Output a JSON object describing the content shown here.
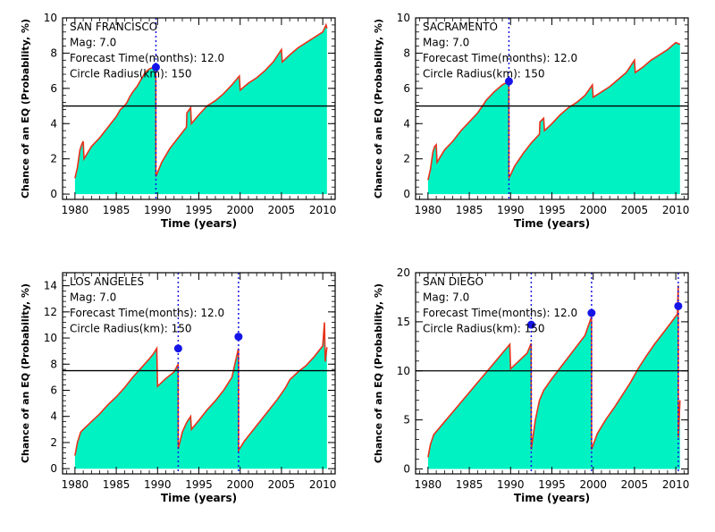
{
  "chart_data": [
    {
      "type": "area",
      "panel": "SAN FRANCISCO",
      "annotations": [
        "SAN FRANCISCO",
        "Mag: 7.0",
        "Forecast Time(months): 12.0",
        "Circle Radius(km): 150"
      ],
      "xlabel": "Time (years)",
      "ylabel": "Chance of an EQ (Probability, %)",
      "xlim": [
        1978.5,
        2011.5
      ],
      "ylim": [
        -0.3,
        10
      ],
      "xticks": [
        1980,
        1985,
        1990,
        1995,
        2000,
        2005,
        2010
      ],
      "yticks": [
        0,
        2,
        4,
        6,
        8,
        10
      ],
      "threshold": 5.0,
      "events": [
        {
          "year": 1989.8,
          "value": 7.2
        }
      ],
      "series": [
        {
          "x": [
            1980.0,
            1980.3,
            1980.6,
            1980.8,
            1981.0,
            1981.1,
            1981.6,
            1982.0,
            1983.0,
            1984.0,
            1985.0,
            1985.5,
            1986.0,
            1986.3,
            1986.6,
            1987.0,
            1987.5,
            1988.0,
            1988.5,
            1989.0,
            1989.5,
            1989.79,
            1989.8,
            1990.5,
            1991.5,
            1992.5,
            1993.5,
            1993.55,
            1994.0,
            1994.1,
            1995.0,
            1996.0,
            1997.0,
            1998.0,
            1999.0,
            1999.9,
            2000.0,
            2001.0,
            2002.0,
            2003.0,
            2004.0,
            2005.0,
            2005.1,
            2006.0,
            2007.0,
            2008.0,
            2009.0,
            2010.0,
            2010.4,
            2010.5
          ],
          "y": [
            0.9,
            1.5,
            2.5,
            2.8,
            3.0,
            2.0,
            2.4,
            2.7,
            3.2,
            3.8,
            4.4,
            4.8,
            5.0,
            5.2,
            5.5,
            5.8,
            6.1,
            6.5,
            6.9,
            7.1,
            7.2,
            7.2,
            1.0,
            1.8,
            2.6,
            3.2,
            3.8,
            4.6,
            4.9,
            4.0,
            4.5,
            5.0,
            5.3,
            5.7,
            6.2,
            6.7,
            5.9,
            6.3,
            6.6,
            7.0,
            7.5,
            8.2,
            7.5,
            7.9,
            8.3,
            8.6,
            8.9,
            9.2,
            9.6,
            9.4
          ]
        }
      ]
    },
    {
      "type": "area",
      "panel": "SACRAMENTO",
      "annotations": [
        "SACRAMENTO",
        "Mag: 7.0",
        "Forecast Time(months): 12.0",
        "Circle Radius(km): 150"
      ],
      "xlabel": "Time (years)",
      "ylabel": "Chance of an EQ (Probability, %)",
      "xlim": [
        1978.5,
        2011.5
      ],
      "ylim": [
        -0.3,
        10
      ],
      "xticks": [
        1980,
        1985,
        1990,
        1995,
        2000,
        2005,
        2010
      ],
      "yticks": [
        0,
        2,
        4,
        6,
        8,
        10
      ],
      "threshold": 5.0,
      "events": [
        {
          "year": 1989.8,
          "value": 6.4
        }
      ],
      "series": [
        {
          "x": [
            1980.0,
            1980.3,
            1980.6,
            1980.8,
            1981.0,
            1981.1,
            1981.6,
            1982.0,
            1983.0,
            1984.0,
            1985.0,
            1986.0,
            1986.6,
            1987.0,
            1988.0,
            1989.0,
            1989.79,
            1989.8,
            1990.5,
            1991.5,
            1992.5,
            1993.5,
            1993.55,
            1994.0,
            1994.1,
            1995.0,
            1996.0,
            1997.0,
            1998.0,
            1999.0,
            1999.9,
            2000.0,
            2001.0,
            2002.0,
            2003.0,
            2004.0,
            2005.0,
            2005.1,
            2006.0,
            2007.0,
            2008.0,
            2009.0,
            2010.0,
            2010.5
          ],
          "y": [
            0.8,
            1.4,
            2.4,
            2.7,
            2.8,
            1.8,
            2.2,
            2.5,
            3.0,
            3.6,
            4.1,
            4.6,
            5.0,
            5.3,
            5.8,
            6.2,
            6.4,
            0.9,
            1.6,
            2.3,
            2.9,
            3.4,
            4.1,
            4.3,
            3.6,
            4.0,
            4.5,
            4.9,
            5.2,
            5.6,
            6.2,
            5.5,
            5.8,
            6.1,
            6.5,
            6.9,
            7.6,
            6.9,
            7.2,
            7.6,
            7.9,
            8.2,
            8.6,
            8.5
          ]
        }
      ]
    },
    {
      "type": "area",
      "panel": "LOS ANGELES",
      "annotations": [
        "LOS ANGELES",
        "Mag: 7.0",
        "Forecast Time(months): 12.0",
        "Circle Radius(km): 150"
      ],
      "xlabel": "Time (years)",
      "ylabel": "Chance of an EQ (Probability, %)",
      "xlim": [
        1978.5,
        2011.5
      ],
      "ylim": [
        -0.4,
        15
      ],
      "xticks": [
        1980,
        1985,
        1990,
        1995,
        2000,
        2005,
        2010
      ],
      "yticks": [
        0,
        2,
        4,
        6,
        8,
        10,
        12,
        14
      ],
      "threshold": 7.5,
      "events": [
        {
          "year": 1992.5,
          "value": 9.2
        },
        {
          "year": 1999.8,
          "value": 10.1
        }
      ],
      "series": [
        {
          "x": [
            1980.0,
            1980.3,
            1980.7,
            1981.0,
            1981.5,
            1982.0,
            1983.0,
            1984.0,
            1985.0,
            1986.0,
            1987.0,
            1988.0,
            1989.0,
            1989.5,
            1989.9,
            1990.0,
            1991.0,
            1992.0,
            1992.49,
            1992.5,
            1993.0,
            1993.5,
            1994.0,
            1994.1,
            1995.0,
            1996.0,
            1997.0,
            1998.0,
            1999.0,
            1999.79,
            1999.8,
            2000.5,
            2001.5,
            2002.5,
            2003.5,
            2004.5,
            2005.5,
            2006.0,
            2007.0,
            2008.0,
            2009.0,
            2010.0,
            2010.2,
            2010.3,
            2010.5
          ],
          "y": [
            1.0,
            2.0,
            2.8,
            3.0,
            3.3,
            3.6,
            4.2,
            4.9,
            5.5,
            6.2,
            7.0,
            7.7,
            8.4,
            8.8,
            9.2,
            6.3,
            6.9,
            7.4,
            8.0,
            1.5,
            2.8,
            3.5,
            4.0,
            3.0,
            3.7,
            4.5,
            5.2,
            6.0,
            7.0,
            9.2,
            1.4,
            2.1,
            2.9,
            3.7,
            4.5,
            5.3,
            6.2,
            6.8,
            7.4,
            7.9,
            8.6,
            9.4,
            11.2,
            8.2,
            9.3
          ]
        }
      ]
    },
    {
      "type": "area",
      "panel": "SAN DIEGO",
      "annotations": [
        "SAN DIEGO",
        "Mag: 7.0",
        "Forecast Time(months): 12.0",
        "Circle Radius(km): 150"
      ],
      "xlabel": "Time (years)",
      "ylabel": "Chance of an EQ (Probability, %)",
      "xlim": [
        1978.5,
        2011.5
      ],
      "ylim": [
        -0.5,
        20
      ],
      "xticks": [
        1980,
        1985,
        1990,
        1995,
        2000,
        2005,
        2010
      ],
      "yticks": [
        0,
        5,
        10,
        15,
        20
      ],
      "threshold": 10.0,
      "events": [
        {
          "year": 1992.5,
          "value": 14.7
        },
        {
          "year": 1999.8,
          "value": 15.9
        },
        {
          "year": 2010.3,
          "value": 16.6
        }
      ],
      "series": [
        {
          "x": [
            1980.0,
            1980.3,
            1980.7,
            1981.0,
            1981.5,
            1982.0,
            1983.0,
            1984.0,
            1985.0,
            1986.0,
            1987.0,
            1988.0,
            1989.0,
            1989.5,
            1989.9,
            1990.0,
            1991.0,
            1992.0,
            1992.49,
            1992.5,
            1993.0,
            1993.5,
            1994.0,
            1995.0,
            1996.0,
            1997.0,
            1998.0,
            1999.0,
            1999.79,
            1999.8,
            2000.5,
            2001.5,
            2002.5,
            2003.5,
            2004.5,
            2005.5,
            2006.5,
            2007.5,
            2008.5,
            2009.5,
            2010.2,
            2010.29,
            2010.3,
            2010.5
          ],
          "y": [
            1.2,
            2.5,
            3.5,
            3.8,
            4.3,
            4.8,
            5.8,
            6.8,
            7.8,
            8.8,
            9.8,
            10.8,
            11.8,
            12.3,
            12.7,
            10.2,
            11.0,
            11.8,
            12.8,
            2.0,
            5.0,
            7.0,
            8.0,
            9.2,
            10.3,
            11.4,
            12.5,
            13.6,
            15.5,
            2.0,
            3.6,
            5.0,
            6.2,
            7.5,
            8.8,
            10.3,
            11.6,
            12.8,
            13.9,
            15.0,
            15.8,
            18.7,
            3.2,
            7.0
          ]
        }
      ]
    }
  ],
  "colors": {
    "fill": "#00F2C3",
    "line": "#E8321C",
    "event_marker": "#1515E8",
    "event_line": "#1515E8",
    "threshold": "#000000"
  }
}
